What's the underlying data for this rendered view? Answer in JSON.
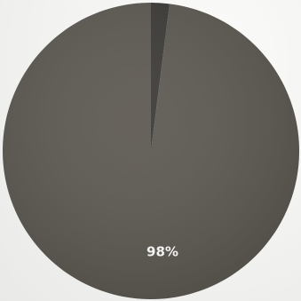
{
  "chart_data": {
    "type": "pie",
    "categories": [
      "",
      ""
    ],
    "values": [
      98,
      2
    ],
    "labels": [
      "98%",
      ""
    ],
    "colors": [
      "#5f5b54",
      "#3e3d3a"
    ],
    "label_color": "#f2f2f2",
    "start": "12 o'clock",
    "direction": "clockwise",
    "title": "",
    "legend": "none"
  }
}
